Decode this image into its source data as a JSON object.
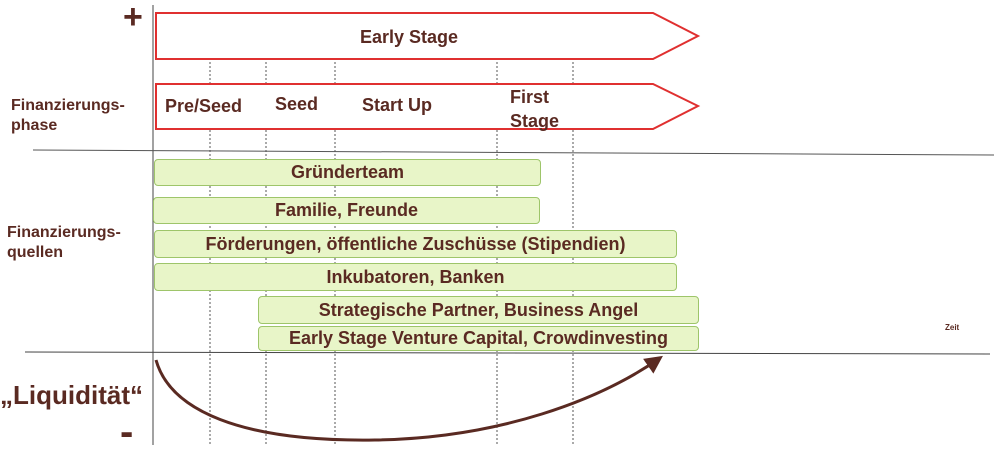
{
  "colors": {
    "text": "#5a2a22",
    "arrow_outline": "#e03030",
    "bar_fill": "#e8f5c8",
    "bar_border": "#9ec56a"
  },
  "top_symbol": "+",
  "bottom_symbol": "-",
  "liquidity_label": "„Liquidität“",
  "time_label": "Zeit",
  "row_labels": {
    "phase": [
      "Finanzierungs-",
      "phase"
    ],
    "sources": [
      "Finanzierungs-",
      "quellen"
    ]
  },
  "early_stage_label": "Early Stage",
  "phases": [
    "Pre/Seed",
    "Seed",
    "Start Up",
    "First",
    "Stage"
  ],
  "sources": [
    "Gründerteam",
    "Familie, Freunde",
    "Förderungen, öffentliche Zuschüsse (Stipendien)",
    "Inkubatoren, Banken",
    "Strategische Partner, Business Angel",
    "Early Stage Venture Capital, Crowdinvesting"
  ]
}
